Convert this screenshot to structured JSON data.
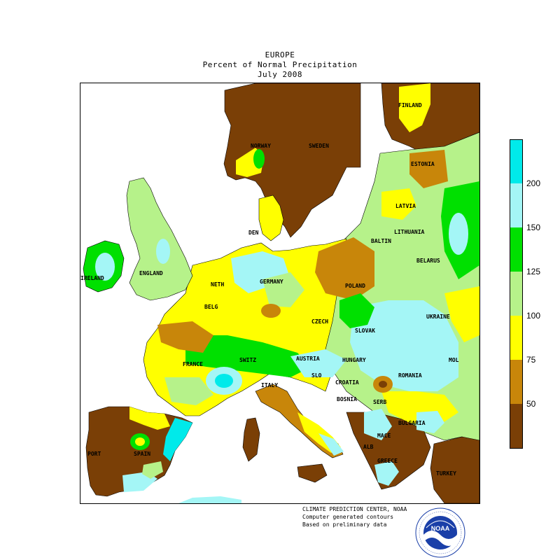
{
  "title": {
    "line1": "EUROPE",
    "line2": "Percent of Normal Precipitation",
    "line3": "July 2008"
  },
  "colors": {
    "lt50": "#7a3f06",
    "c50_75": "#c8860a",
    "c75_100": "#ffff00",
    "c100_125": "#b6f28a",
    "c125_150": "#00e000",
    "c150_200": "#a4f6f6",
    "gt200": "#00eaea",
    "water": "#ffffff"
  },
  "legend": {
    "labels": [
      "200",
      "150",
      "125",
      "100",
      "75",
      "50"
    ]
  },
  "countries": [
    "NORWAY",
    "SWEDEN",
    "FINLAND",
    "ESTONIA",
    "LATVIA",
    "LITHUANIA",
    "BALTIN",
    "BELARUS",
    "DEN",
    "ENGLAND",
    "IRELAND",
    "NETH",
    "GERMANY",
    "POLAND",
    "BELG",
    "CZECH",
    "SLOVAK",
    "UKRAINE",
    "FRANCE",
    "SWITZ",
    "AUSTRIA",
    "HUNGARY",
    "MOL",
    "ROMANIA",
    "SLO",
    "CROATIA",
    "ITALY",
    "BOSNIA",
    "SERB",
    "BULGARIA",
    "MACE",
    "ALB",
    "GREECE",
    "TURKEY",
    "SPAIN",
    "PORT"
  ],
  "credits": {
    "line1": "CLIMATE PREDICTION CENTER, NOAA",
    "line2": "Computer generated contours",
    "line3": "Based on preliminary data"
  },
  "logo": {
    "text": "NOAA",
    "ring_top": "NATIONAL OCEANIC AND ATMOSPHERIC ADMINISTRATION",
    "ring_bottom": "U.S. DEPARTMENT OF COMMERCE"
  }
}
